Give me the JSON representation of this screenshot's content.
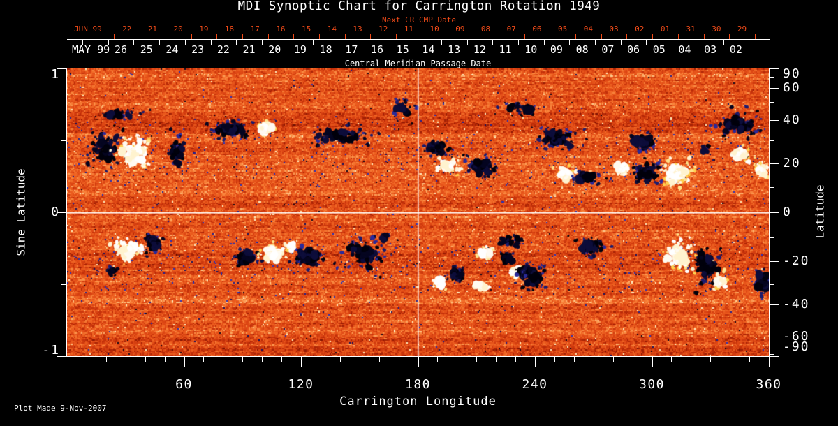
{
  "title": "MDI Synoptic Chart for Carrington Rotation 1949",
  "colors": {
    "background": "#000000",
    "text": "#ffffff",
    "accent_red": "#ee4a18",
    "grid_line": "#ffffff"
  },
  "top_axis": {
    "next_cr_label": "Next CR CMP Date",
    "next_month": "JUN 99",
    "next_dates": [
      "22",
      "21",
      "20",
      "19",
      "18",
      "17",
      "16",
      "15",
      "14",
      "13",
      "12",
      "11",
      "10",
      "09",
      "08",
      "07",
      "06",
      "05",
      "04",
      "03",
      "02",
      "01",
      "31",
      "30",
      "29"
    ],
    "cmp_month": "MAY 99",
    "cmp_dates": [
      "26",
      "25",
      "24",
      "23",
      "22",
      "21",
      "20",
      "19",
      "18",
      "17",
      "16",
      "15",
      "14",
      "13",
      "12",
      "11",
      "10",
      "09",
      "08",
      "07",
      "06",
      "05",
      "04",
      "03",
      "02"
    ],
    "axis_caption": "Central Meridian Passage Date"
  },
  "footer": {
    "plot_made": "Plot Made  9-Nov-2007"
  },
  "chart_data": {
    "type": "heatmap",
    "subtype": "solar synoptic magnetogram",
    "title": "MDI Synoptic Chart for Carrington Rotation 1949",
    "xlabel": "Carrington Longitude",
    "ylabel_left": "Sine Latitude",
    "ylabel_right": "Latitude",
    "xlim": [
      0,
      360
    ],
    "ylim_sine_latitude": [
      -1,
      1
    ],
    "x_major_ticks": [
      60,
      120,
      180,
      240,
      300,
      360
    ],
    "x_minor_tick_step_deg": 10,
    "y_left_major_ticks": [
      1,
      0,
      -1
    ],
    "y_left_minor_ticks": [
      0.75,
      0.5,
      0.25,
      -0.25,
      -0.5,
      -0.75
    ],
    "y_right_major_ticks_deg": [
      90,
      60,
      40,
      20,
      0,
      -20,
      -40,
      -60,
      -90
    ],
    "y_right_minor_ticks_deg": [
      80,
      70,
      50,
      30,
      10,
      -10,
      -30,
      -50,
      -70,
      -80
    ],
    "grid": {
      "vertical_line_lon": 180,
      "horizontal_line_sine_lat": 0
    },
    "colormap_note": "orange-red photospheric field; white/yellow = positive flux, black/blue = negative flux",
    "active_regions": [
      [
        19.3,
        0.456,
        11.0,
        0.16,
        "neg",
        1
      ],
      [
        34.4,
        0.408,
        11.0,
        0.155,
        "pos",
        1
      ],
      [
        55.9,
        0.417,
        5.7,
        0.136,
        "neg",
        0.4
      ],
      [
        26.5,
        0.68,
        18.0,
        0.05,
        "neg",
        0.25
      ],
      [
        83.8,
        0.578,
        12.5,
        0.075,
        "neg",
        1
      ],
      [
        102.1,
        0.587,
        6.4,
        0.058,
        "pos",
        1
      ],
      [
        139.7,
        0.539,
        17.9,
        0.087,
        "neg",
        0.4
      ],
      [
        172.0,
        0.733,
        7.9,
        0.097,
        "neg",
        0.35
      ],
      [
        232.8,
        0.718,
        10.7,
        0.068,
        "neg",
        0.3
      ],
      [
        189.8,
        0.442,
        7.9,
        0.058,
        "neg",
        1
      ],
      [
        195.2,
        0.32,
        7.9,
        0.058,
        "pos",
        1
      ],
      [
        213.1,
        0.32,
        9.0,
        0.087,
        "neg",
        1
      ],
      [
        250.7,
        0.515,
        14.3,
        0.087,
        "neg",
        1
      ],
      [
        256.1,
        0.272,
        6.3,
        0.049,
        "pos",
        1
      ],
      [
        266.9,
        0.248,
        9.0,
        0.058,
        "neg",
        1
      ],
      [
        284.8,
        0.311,
        5.4,
        0.058,
        "pos",
        1
      ],
      [
        297.3,
        0.272,
        7.9,
        0.107,
        "neg",
        1
      ],
      [
        313.4,
        0.272,
        10.0,
        0.121,
        "pos",
        1
      ],
      [
        295.5,
        0.49,
        9.0,
        0.073,
        "neg",
        1
      ],
      [
        327.8,
        0.44,
        3.6,
        0.039,
        "neg",
        0.5
      ],
      [
        344.5,
        0.612,
        15.4,
        0.107,
        "neg",
        1
      ],
      [
        345.3,
        0.408,
        7.2,
        0.058,
        "pos",
        1
      ],
      [
        356.0,
        0.29,
        4.3,
        0.078,
        "pos",
        1
      ],
      [
        31.2,
        -0.272,
        11.5,
        0.107,
        "pos",
        1
      ],
      [
        44.4,
        -0.214,
        5.4,
        0.083,
        "neg",
        1
      ],
      [
        23.3,
        -0.408,
        3.6,
        0.039,
        "neg",
        0.7
      ],
      [
        91.3,
        -0.311,
        7.2,
        0.073,
        "neg",
        1
      ],
      [
        105.7,
        -0.286,
        7.2,
        0.073,
        "pos",
        1
      ],
      [
        123.6,
        -0.311,
        9.7,
        0.087,
        "neg",
        1
      ],
      [
        114.6,
        -0.238,
        3.6,
        0.039,
        "pos",
        0.7
      ],
      [
        152.2,
        -0.301,
        15.0,
        0.146,
        "neg",
        0.4
      ],
      [
        163.0,
        -0.175,
        3.6,
        0.029,
        "neg",
        0.7
      ],
      [
        215.0,
        -0.29,
        5.0,
        0.06,
        "pos",
        1
      ],
      [
        230.0,
        -0.42,
        4.0,
        0.05,
        "pos",
        1
      ],
      [
        226.7,
        -0.325,
        4.5,
        0.055,
        "neg",
        1
      ],
      [
        234.0,
        -0.417,
        5.0,
        0.05,
        "neg",
        1
      ],
      [
        239.6,
        -0.44,
        8.0,
        0.12,
        "neg",
        0.5
      ],
      [
        200.0,
        -0.43,
        4.5,
        0.07,
        "neg",
        1
      ],
      [
        191.0,
        -0.49,
        4.3,
        0.05,
        "pos",
        1
      ],
      [
        213.0,
        -0.51,
        7.0,
        0.04,
        "pos",
        0.5
      ],
      [
        227.0,
        -0.2,
        9.0,
        0.05,
        "neg",
        0.4
      ],
      [
        268.7,
        -0.238,
        9.7,
        0.097,
        "neg",
        0.45
      ],
      [
        313.8,
        -0.301,
        9.7,
        0.146,
        "pos",
        1
      ],
      [
        328.1,
        -0.379,
        9.7,
        0.17,
        "neg",
        1
      ],
      [
        335.3,
        -0.485,
        4.3,
        0.068,
        "pos",
        1
      ],
      [
        356.4,
        -0.49,
        4.7,
        0.097,
        "neg",
        1
      ]
    ]
  }
}
